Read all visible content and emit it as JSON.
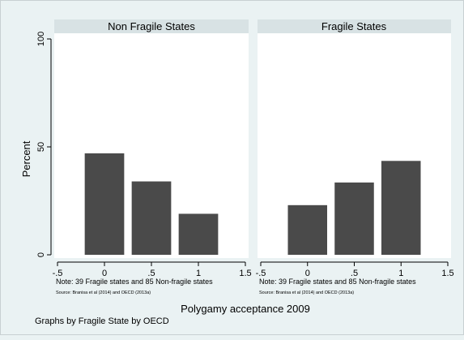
{
  "chart_data": {
    "type": "bar",
    "xlabel": "Polygamy acceptance 2009",
    "ylabel": "Percent",
    "caption": "Graphs by Fragile State by OECD",
    "xlim": [
      -0.5,
      1.5
    ],
    "ylim": [
      0,
      100
    ],
    "x_ticks": [
      -0.5,
      0,
      0.5,
      1,
      1.5
    ],
    "x_tick_labels": [
      "-.5",
      "0",
      ".5",
      "1",
      "1.5"
    ],
    "y_ticks": [
      0,
      50,
      100
    ],
    "y_tick_labels": [
      "0",
      "50",
      "100"
    ],
    "bar_width": 0.42,
    "bar_color": "#4a4a4a",
    "panels": [
      {
        "title": "Non Fragile States",
        "note": "Note: 39 Fragile states and 85 Non-fragile states",
        "source": "Source: Branisa et al (2014) and OECD (2013a)",
        "x": [
          0,
          0.5,
          1
        ],
        "values": [
          47,
          34,
          19
        ]
      },
      {
        "title": "Fragile States",
        "note": "Note: 39 Fragile states and 85 Non-fragile states",
        "source": "Source: Branisa et al (2014) and OECD (2013a)",
        "x": [
          0,
          0.5,
          1
        ],
        "values": [
          23,
          33.5,
          43.5
        ]
      }
    ]
  }
}
